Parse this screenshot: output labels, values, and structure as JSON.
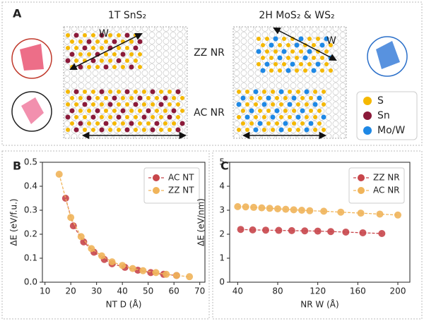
{
  "panel_a": {
    "label": "A",
    "left_title": "1T SnS₂",
    "right_title": "2H MoS₂ & WS₂",
    "width_labels": [
      "W",
      "W"
    ],
    "row_labels": [
      "ZZ NR",
      "AC NR"
    ],
    "legend": [
      "S",
      "Sn",
      "Mo/W"
    ]
  },
  "chart_data": [
    {
      "type": "line",
      "panel": "B",
      "xlabel": "NT D (Å)",
      "ylabel": "ΔE (eV/f.u.)",
      "xlim": [
        9,
        72
      ],
      "xticks": [
        10,
        20,
        30,
        40,
        50,
        60,
        70
      ],
      "ylim": [
        0,
        0.5
      ],
      "yticks": [
        {
          "value": 0,
          "label": "0.0"
        },
        0.1,
        0.2,
        0.3,
        0.4,
        0.5
      ],
      "legend": "upper right",
      "series": [
        {
          "name": "AC NT",
          "color": "#c8464b",
          "x": [
            18,
            21,
            25,
            29,
            33,
            36,
            41,
            46,
            51,
            56,
            61
          ],
          "values": [
            0.35,
            0.235,
            0.168,
            0.125,
            0.095,
            0.077,
            0.062,
            0.05,
            0.04,
            0.033,
            0.028
          ]
        },
        {
          "name": "ZZ NT",
          "color": "#f0b45a",
          "x": [
            15.5,
            20,
            24,
            28,
            32,
            36,
            40,
            44,
            48,
            53,
            57,
            61,
            66
          ],
          "values": [
            0.45,
            0.27,
            0.19,
            0.14,
            0.11,
            0.085,
            0.07,
            0.057,
            0.048,
            0.04,
            0.033,
            0.028,
            0.023
          ]
        }
      ]
    },
    {
      "type": "line",
      "panel": "C",
      "xlabel": "NR W (Å)",
      "ylabel": "ΔE (eV/nm)",
      "xlim": [
        32,
        212
      ],
      "xticks": [
        40,
        80,
        120,
        160,
        200
      ],
      "ylim": [
        0,
        5
      ],
      "yticks": [
        0,
        1,
        2,
        3,
        4,
        5
      ],
      "legend": "upper right",
      "series": [
        {
          "name": "ZZ NR",
          "color": "#c8464b",
          "x": [
            43,
            55,
            68,
            81,
            94,
            107,
            120,
            133,
            148,
            165,
            184
          ],
          "values": [
            2.2,
            2.18,
            2.17,
            2.16,
            2.15,
            2.14,
            2.13,
            2.11,
            2.09,
            2.06,
            2.03
          ]
        },
        {
          "name": "AC NR",
          "color": "#f0b45a",
          "x": [
            40,
            48,
            56,
            64,
            72,
            80,
            88,
            96,
            104,
            112,
            126,
            143,
            163,
            182,
            200
          ],
          "values": [
            3.15,
            3.14,
            3.12,
            3.1,
            3.08,
            3.06,
            3.04,
            3.02,
            3.0,
            2.98,
            2.96,
            2.92,
            2.88,
            2.84,
            2.8
          ]
        }
      ]
    }
  ]
}
